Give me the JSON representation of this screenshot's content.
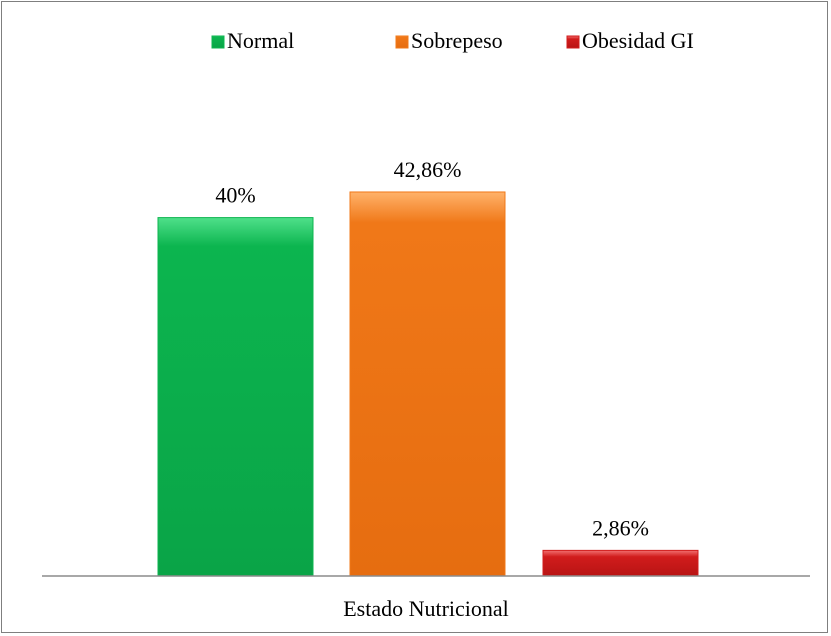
{
  "chart_data": {
    "type": "bar",
    "categories": [
      "Estado Nutricional"
    ],
    "series": [
      {
        "name": "Normal",
        "values": [
          40
        ],
        "label": "40%",
        "color": "#0cb54f"
      },
      {
        "name": "Sobrepeso",
        "values": [
          42.86
        ],
        "label": "42,86%",
        "color": "#f07818"
      },
      {
        "name": "Obesidad GI",
        "values": [
          2.86
        ],
        "label": "2,86%",
        "color": "#d11c1c"
      }
    ],
    "xlabel": "Estado Nutricional",
    "legend_position": "top",
    "grid": false,
    "ylim": [
      0,
      50
    ]
  }
}
